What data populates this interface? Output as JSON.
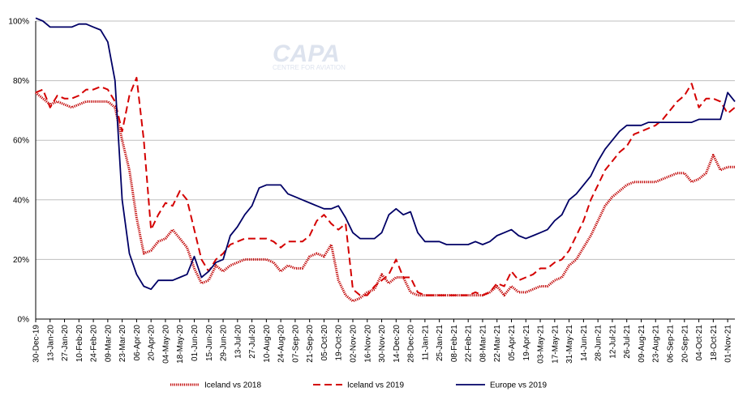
{
  "watermark": {
    "logo": "CAPA",
    "tagline": "CENTRE FOR AVIATION"
  },
  "chart_data": {
    "type": "line",
    "title": "",
    "xlabel": "",
    "ylabel": "",
    "ylim": [
      0,
      100
    ],
    "y_ticks": [
      "0%",
      "20%",
      "40%",
      "60%",
      "80%",
      "100%"
    ],
    "grid": "horizontal",
    "legend_position": "bottom",
    "x_tick_labels": [
      "30-Dec-19",
      "13-Jan-20",
      "27-Jan-20",
      "10-Feb-20",
      "24-Feb-20",
      "09-Mar-20",
      "23-Mar-20",
      "06-Apr-20",
      "20-Apr-20",
      "04-May-20",
      "18-May-20",
      "01-Jun-20",
      "15-Jun-20",
      "29-Jun-20",
      "13-Jul-20",
      "27-Jul-20",
      "10-Aug-20",
      "24-Aug-20",
      "07-Sep-20",
      "21-Sep-20",
      "05-Oct-20",
      "19-Oct-20",
      "02-Nov-20",
      "16-Nov-20",
      "30-Nov-20",
      "14-Dec-20",
      "28-Dec-20",
      "11-Jan-21",
      "25-Jan-21",
      "08-Feb-21",
      "22-Feb-21",
      "08-Mar-21",
      "22-Mar-21",
      "05-Apr-21",
      "19-Apr-21",
      "03-May-21",
      "17-May-21",
      "31-May-21",
      "14-Jun-21",
      "28-Jun-21",
      "12-Jul-21",
      "26-Jul-21",
      "09-Aug-21",
      "23-Aug-21",
      "06-Sep-21",
      "20-Sep-21",
      "04-Oct-21",
      "18-Oct-21",
      "01-Nov-21"
    ],
    "x": [
      "30-Dec-19",
      "06-Jan-20",
      "13-Jan-20",
      "20-Jan-20",
      "27-Jan-20",
      "03-Feb-20",
      "10-Feb-20",
      "17-Feb-20",
      "24-Feb-20",
      "02-Mar-20",
      "09-Mar-20",
      "16-Mar-20",
      "23-Mar-20",
      "30-Mar-20",
      "06-Apr-20",
      "13-Apr-20",
      "20-Apr-20",
      "27-Apr-20",
      "04-May-20",
      "11-May-20",
      "18-May-20",
      "25-May-20",
      "01-Jun-20",
      "08-Jun-20",
      "15-Jun-20",
      "22-Jun-20",
      "29-Jun-20",
      "06-Jul-20",
      "13-Jul-20",
      "20-Jul-20",
      "27-Jul-20",
      "03-Aug-20",
      "10-Aug-20",
      "17-Aug-20",
      "24-Aug-20",
      "31-Aug-20",
      "07-Sep-20",
      "14-Sep-20",
      "21-Sep-20",
      "28-Sep-20",
      "05-Oct-20",
      "12-Oct-20",
      "19-Oct-20",
      "26-Oct-20",
      "02-Nov-20",
      "09-Nov-20",
      "16-Nov-20",
      "23-Nov-20",
      "30-Nov-20",
      "07-Dec-20",
      "14-Dec-20",
      "21-Dec-20",
      "28-Dec-20",
      "04-Jan-21",
      "11-Jan-21",
      "18-Jan-21",
      "25-Jan-21",
      "01-Feb-21",
      "08-Feb-21",
      "15-Feb-21",
      "22-Feb-21",
      "01-Mar-21",
      "08-Mar-21",
      "15-Mar-21",
      "22-Mar-21",
      "29-Mar-21",
      "05-Apr-21",
      "12-Apr-21",
      "19-Apr-21",
      "26-Apr-21",
      "03-May-21",
      "10-May-21",
      "17-May-21",
      "24-May-21",
      "31-May-21",
      "07-Jun-21",
      "14-Jun-21",
      "21-Jun-21",
      "28-Jun-21",
      "05-Jul-21",
      "12-Jul-21",
      "19-Jul-21",
      "26-Jul-21",
      "02-Aug-21",
      "09-Aug-21",
      "16-Aug-21",
      "23-Aug-21",
      "30-Aug-21",
      "06-Sep-21",
      "13-Sep-21",
      "20-Sep-21",
      "27-Sep-21",
      "04-Oct-21",
      "11-Oct-21",
      "18-Oct-21",
      "25-Oct-21",
      "01-Nov-21",
      "08-Nov-21"
    ],
    "series": [
      {
        "name": "Iceland vs 2018",
        "color": "#c00000",
        "style": "dotted-thick",
        "values": [
          76,
          74,
          72,
          73,
          72,
          71,
          72,
          73,
          73,
          73,
          73,
          71,
          60,
          50,
          34,
          22,
          23,
          26,
          27,
          30,
          27,
          24,
          17,
          12,
          13,
          18,
          16,
          18,
          19,
          20,
          20,
          20,
          20,
          19,
          16,
          18,
          17,
          17,
          21,
          22,
          21,
          25,
          13,
          8,
          6,
          7,
          9,
          10,
          15,
          12,
          14,
          14,
          9,
          8,
          8,
          8,
          8,
          8,
          8,
          8,
          8,
          8,
          8,
          9,
          11,
          8,
          11,
          9,
          9,
          10,
          11,
          11,
          13,
          14,
          18,
          20,
          24,
          28,
          33,
          38,
          41,
          43,
          45,
          46,
          46,
          46,
          46,
          47,
          48,
          49,
          49,
          46,
          47,
          49,
          55,
          50,
          51,
          51
        ]
      },
      {
        "name": "Iceland vs 2019",
        "color": "#d40000",
        "style": "dashed",
        "values": [
          76,
          77,
          71,
          75,
          74,
          74,
          75,
          77,
          77,
          78,
          77,
          73,
          63,
          75,
          81,
          60,
          30,
          35,
          39,
          38,
          43,
          40,
          30,
          20,
          16,
          20,
          22,
          25,
          26,
          27,
          27,
          27,
          27,
          26,
          24,
          26,
          26,
          26,
          28,
          33,
          35,
          32,
          30,
          32,
          10,
          8,
          8,
          11,
          13,
          15,
          20,
          14,
          14,
          9,
          8,
          8,
          8,
          8,
          8,
          8,
          8,
          9,
          8,
          9,
          12,
          11,
          16,
          13,
          14,
          15,
          17,
          17,
          19,
          20,
          23,
          28,
          33,
          40,
          45,
          50,
          53,
          56,
          58,
          62,
          63,
          64,
          65,
          67,
          70,
          73,
          75,
          79,
          71,
          74,
          74,
          73,
          69,
          71
        ]
      },
      {
        "name": "Europe vs 2019",
        "color": "#000066",
        "style": "solid",
        "values": [
          101,
          100,
          98,
          98,
          98,
          98,
          99,
          99,
          98,
          97,
          93,
          80,
          40,
          22,
          15,
          11,
          10,
          13,
          13,
          13,
          14,
          15,
          21,
          14,
          16,
          19,
          20,
          28,
          31,
          35,
          38,
          44,
          45,
          45,
          45,
          42,
          41,
          40,
          39,
          38,
          37,
          37,
          38,
          34,
          29,
          27,
          27,
          27,
          29,
          35,
          37,
          35,
          36,
          29,
          26,
          26,
          26,
          25,
          25,
          25,
          25,
          26,
          25,
          26,
          28,
          29,
          30,
          28,
          27,
          28,
          29,
          30,
          33,
          35,
          40,
          42,
          45,
          48,
          53,
          57,
          60,
          63,
          65,
          65,
          65,
          66,
          66,
          66,
          66,
          66,
          66,
          66,
          67,
          67,
          67,
          67,
          76,
          73
        ]
      }
    ]
  }
}
